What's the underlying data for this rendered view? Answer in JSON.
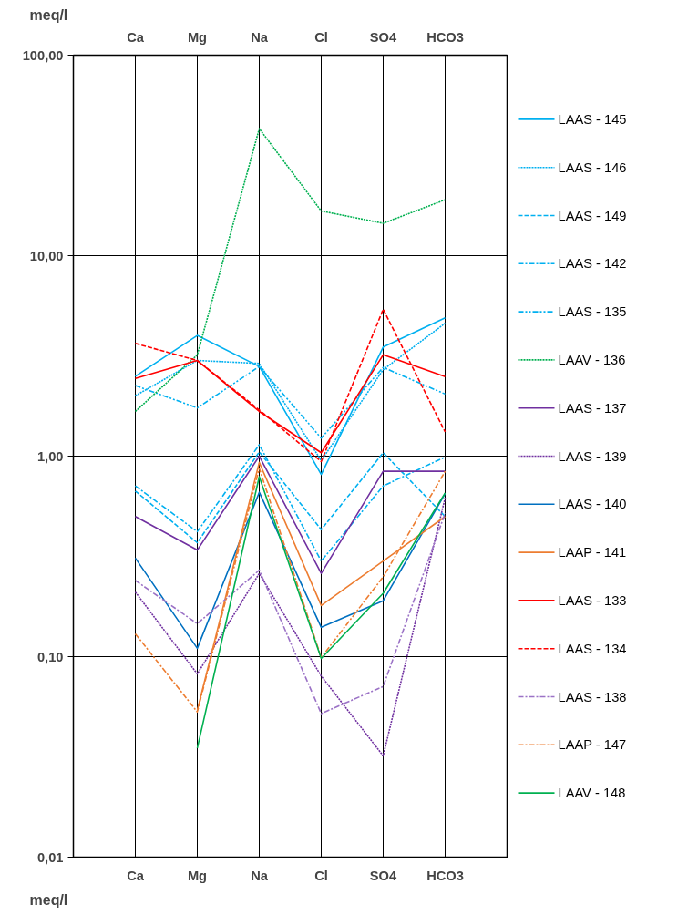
{
  "chart_data": {
    "type": "line",
    "ylabel": "meq/l",
    "categories": [
      "Ca",
      "Mg",
      "Na",
      "Cl",
      "SO4",
      "HCO3"
    ],
    "log": true,
    "ylim": [
      0.01,
      100
    ],
    "yticks": [
      {
        "value": 0.01,
        "label": "0,01"
      },
      {
        "value": 0.1,
        "label": "0,10"
      },
      {
        "value": 1,
        "label": "1,00"
      },
      {
        "value": 10,
        "label": "10,00"
      },
      {
        "value": 100,
        "label": "100,00"
      }
    ],
    "grid": true,
    "legend": "right",
    "marker": "none",
    "series": [
      {
        "name": "LAAS - 145",
        "color": "#00b0f0",
        "line_style": "solid",
        "values": [
          2.5,
          4.0,
          2.8,
          0.81,
          3.5,
          4.9
        ]
      },
      {
        "name": "LAAS - 146",
        "color": "#00b0f0",
        "line_style": "dotted",
        "values": [
          2.0,
          3.0,
          2.9,
          0.95,
          2.7,
          4.6
        ]
      },
      {
        "name": "LAAS - 149",
        "color": "#00b0f0",
        "line_style": "dashed",
        "values": [
          0.67,
          0.37,
          1.05,
          0.43,
          1.04,
          0.5
        ]
      },
      {
        "name": "LAAS - 142",
        "color": "#00b0f0",
        "line_style": "dashdot",
        "values": [
          0.71,
          0.42,
          1.14,
          0.3,
          0.71,
          0.99
        ]
      },
      {
        "name": "LAAS - 135",
        "color": "#00b0f0",
        "line_style": "dashdotdot",
        "values": [
          2.25,
          1.74,
          2.8,
          1.23,
          2.77,
          2.04
        ]
      },
      {
        "name": "LAAV - 136",
        "color": "#00b050",
        "line_style": "dotted",
        "values": [
          1.67,
          3.2,
          43,
          16.7,
          14.5,
          19
        ]
      },
      {
        "name": "LAAS - 137",
        "color": "#7030a0",
        "line_style": "solid",
        "values": [
          0.5,
          0.34,
          1.0,
          0.26,
          0.84,
          0.84
        ]
      },
      {
        "name": "LAAS - 139",
        "color": "#7030a0",
        "line_style": "dotted",
        "values": [
          0.21,
          0.082,
          0.26,
          0.08,
          0.032,
          0.62
        ]
      },
      {
        "name": "LAAS - 140",
        "color": "#0070c0",
        "line_style": "solid",
        "values": [
          0.31,
          0.11,
          0.66,
          0.14,
          0.19,
          0.65
        ]
      },
      {
        "name": "LAAP - 141",
        "color": "#ed7d31",
        "line_style": "solid",
        "values": [
          null,
          0.054,
          0.93,
          0.18,
          0.3,
          0.5
        ]
      },
      {
        "name": "LAAS - 133",
        "color": "#ff0000",
        "line_style": "solid",
        "values": [
          2.44,
          3.0,
          1.67,
          1.04,
          3.2,
          2.49
        ]
      },
      {
        "name": "LAAS - 134",
        "color": "#ff0000",
        "line_style": "dashed",
        "values": [
          3.65,
          3.0,
          1.7,
          0.94,
          5.4,
          1.32
        ]
      },
      {
        "name": "LAAS - 138",
        "color": "#9b72c6",
        "line_style": "dashdot",
        "values": [
          0.24,
          0.146,
          0.27,
          0.052,
          0.071,
          0.52
        ]
      },
      {
        "name": "LAAP - 147",
        "color": "#ed7d31",
        "line_style": "dashdot",
        "values": [
          0.13,
          0.053,
          0.87,
          0.099,
          0.25,
          0.84
        ]
      },
      {
        "name": "LAAV - 148",
        "color": "#00b050",
        "line_style": "solid",
        "values": [
          null,
          0.035,
          0.79,
          0.098,
          0.207,
          0.655
        ]
      }
    ]
  }
}
